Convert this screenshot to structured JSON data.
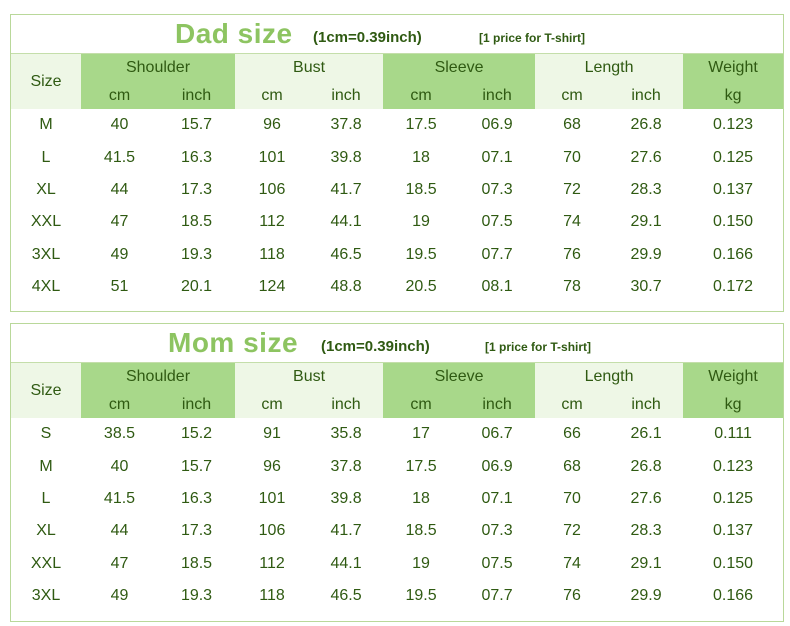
{
  "dad": {
    "title": "Dad size",
    "conversion": "(1cm=0.39inch)",
    "note": "[1 price for T-shirt]",
    "headers": {
      "size": "Size",
      "shoulder": "Shoulder",
      "bust": "Bust",
      "sleeve": "Sleeve",
      "length": "Length",
      "weight": "Weight",
      "cm": "cm",
      "inch": "inch",
      "kg": "kg"
    },
    "rows": [
      [
        "M",
        "40",
        "15.7",
        "96",
        "37.8",
        "17.5",
        "06.9",
        "68",
        "26.8",
        "0.123"
      ],
      [
        "L",
        "41.5",
        "16.3",
        "101",
        "39.8",
        "18",
        "07.1",
        "70",
        "27.6",
        "0.125"
      ],
      [
        "XL",
        "44",
        "17.3",
        "106",
        "41.7",
        "18.5",
        "07.3",
        "72",
        "28.3",
        "0.137"
      ],
      [
        "XXL",
        "47",
        "18.5",
        "112",
        "44.1",
        "19",
        "07.5",
        "74",
        "29.1",
        "0.150"
      ],
      [
        "3XL",
        "49",
        "19.3",
        "118",
        "46.5",
        "19.5",
        "07.7",
        "76",
        "29.9",
        "0.166"
      ],
      [
        "4XL",
        "51",
        "20.1",
        "124",
        "48.8",
        "20.5",
        "08.1",
        "78",
        "30.7",
        "0.172"
      ]
    ]
  },
  "mom": {
    "title": "Mom size",
    "conversion": "(1cm=0.39inch)",
    "note": "[1 price for T-shirt]",
    "headers": {
      "size": "Size",
      "shoulder": "Shoulder",
      "bust": "Bust",
      "sleeve": "Sleeve",
      "length": "Length",
      "weight": "Weight",
      "cm": "cm",
      "inch": "inch",
      "kg": "kg"
    },
    "rows": [
      [
        "S",
        "38.5",
        "15.2",
        "91",
        "35.8",
        "17",
        "06.7",
        "66",
        "26.1",
        "0.111"
      ],
      [
        "M",
        "40",
        "15.7",
        "96",
        "37.8",
        "17.5",
        "06.9",
        "68",
        "26.8",
        "0.123"
      ],
      [
        "L",
        "41.5",
        "16.3",
        "101",
        "39.8",
        "18",
        "07.1",
        "70",
        "27.6",
        "0.125"
      ],
      [
        "XL",
        "44",
        "17.3",
        "106",
        "41.7",
        "18.5",
        "07.3",
        "72",
        "28.3",
        "0.137"
      ],
      [
        "XXL",
        "47",
        "18.5",
        "112",
        "44.1",
        "19",
        "07.5",
        "74",
        "29.1",
        "0.150"
      ],
      [
        "3XL",
        "49",
        "19.3",
        "118",
        "46.5",
        "19.5",
        "07.7",
        "76",
        "29.9",
        "0.166"
      ]
    ]
  }
}
